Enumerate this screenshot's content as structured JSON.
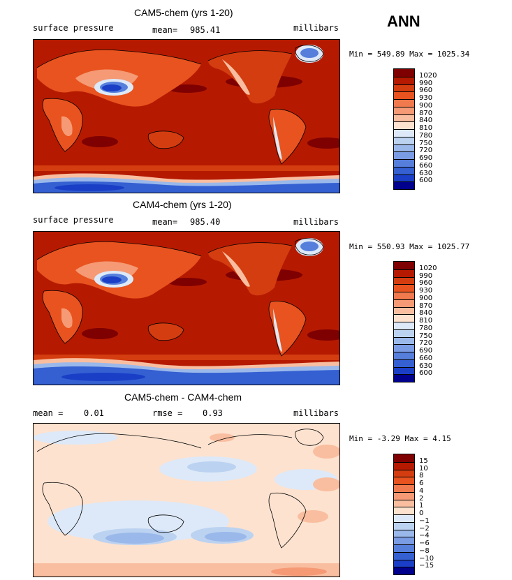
{
  "season": "ANN",
  "panels": [
    {
      "title": "CAM5-chem (yrs 1-20)",
      "left_label": "surface pressure",
      "center_label": "mean=",
      "center_value": "985.41",
      "right_label": "millibars",
      "minmax": "Min = 549.89 Max = 1025.34"
    },
    {
      "title": "CAM4-chem (yrs 1-20)",
      "left_label": "surface pressure",
      "center_label": "mean=",
      "center_value": "985.40",
      "right_label": "millibars",
      "minmax": "Min = 550.93 Max = 1025.77"
    },
    {
      "title": "CAM5-chem - CAM4-chem",
      "left_label": "mean =",
      "left_value": "0.01",
      "center_label": "rmse =",
      "center_value": "0.93",
      "right_label": "millibars",
      "minmax": "Min =  -3.29 Max =   4.15"
    }
  ],
  "chart_data": [
    {
      "type": "heatmap",
      "title": "CAM5-chem (yrs 1-20)",
      "variable": "surface pressure",
      "units": "millibars",
      "mean": 985.41,
      "min": 549.89,
      "max": 1025.34,
      "colorbar": {
        "levels": [
          "1020",
          "990",
          "960",
          "930",
          "900",
          "870",
          "840",
          "810",
          "780",
          "750",
          "720",
          "690",
          "660",
          "630",
          "600"
        ],
        "colors": [
          "#7f0000",
          "#b51a00",
          "#d43d0f",
          "#e8531f",
          "#f0794d",
          "#f59a75",
          "#f9bea0",
          "#fde2cf",
          "#dde9f8",
          "#bcd2f1",
          "#9ab8ea",
          "#7a9ce4",
          "#567fdc",
          "#3560d2",
          "#1a3fc6",
          "#00008c"
        ]
      }
    },
    {
      "type": "heatmap",
      "title": "CAM4-chem (yrs 1-20)",
      "variable": "surface pressure",
      "units": "millibars",
      "mean": 985.4,
      "min": 550.93,
      "max": 1025.77,
      "colorbar": {
        "levels": [
          "1020",
          "990",
          "960",
          "930",
          "900",
          "870",
          "840",
          "810",
          "780",
          "750",
          "720",
          "690",
          "660",
          "630",
          "600"
        ],
        "colors": [
          "#7f0000",
          "#b51a00",
          "#d43d0f",
          "#e8531f",
          "#f0794d",
          "#f59a75",
          "#f9bea0",
          "#fde2cf",
          "#dde9f8",
          "#bcd2f1",
          "#9ab8ea",
          "#7a9ce4",
          "#567fdc",
          "#3560d2",
          "#1a3fc6",
          "#00008c"
        ]
      }
    },
    {
      "type": "heatmap",
      "title": "CAM5-chem - CAM4-chem",
      "units": "millibars",
      "mean": 0.01,
      "rmse": 0.93,
      "min": -3.29,
      "max": 4.15,
      "colorbar": {
        "levels": [
          "15",
          "10",
          "8",
          "6",
          "4",
          "2",
          "1",
          "0",
          "−1",
          "−2",
          "−4",
          "−6",
          "−8",
          "−10",
          "−15"
        ],
        "colors": [
          "#7f0000",
          "#b51a00",
          "#d43d0f",
          "#e8531f",
          "#f0794d",
          "#f59a75",
          "#f9bea0",
          "#fde2cf",
          "#dde9f8",
          "#bcd2f1",
          "#9ab8ea",
          "#7a9ce4",
          "#567fdc",
          "#3560d2",
          "#1a3fc6",
          "#00008c"
        ]
      }
    }
  ]
}
